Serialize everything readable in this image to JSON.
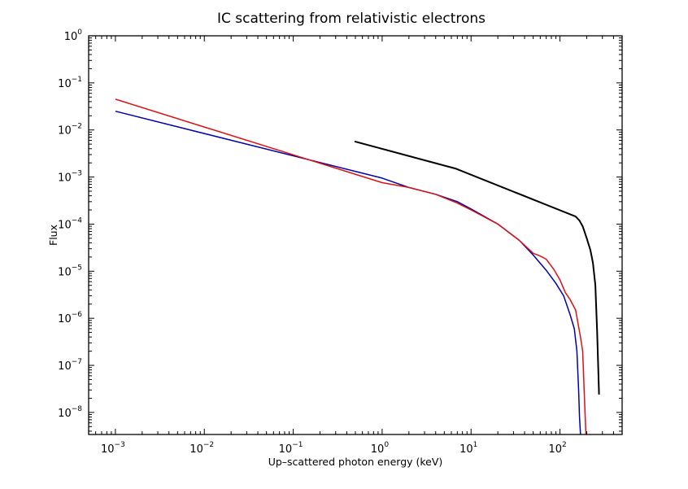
{
  "chart_data": {
    "type": "line",
    "title": "IC scattering from relativistic electrons",
    "xlabel": "Up–scattered photon energy (keV)",
    "ylabel": "Flux",
    "xscale": "log",
    "yscale": "log",
    "xlim": [
      0.0005,
      500
    ],
    "ylim": [
      3.4e-09,
      1
    ],
    "grid": false,
    "legend": "none",
    "x_ticks": [
      {
        "value": 0.001,
        "base": "10",
        "exp": "−3"
      },
      {
        "value": 0.01,
        "base": "10",
        "exp": "−2"
      },
      {
        "value": 0.1,
        "base": "10",
        "exp": "−1"
      },
      {
        "value": 1,
        "base": "10",
        "exp": "0"
      },
      {
        "value": 10,
        "base": "10",
        "exp": "1"
      },
      {
        "value": 100,
        "base": "10",
        "exp": "2"
      }
    ],
    "y_ticks": [
      {
        "value": 1,
        "base": "10",
        "exp": "0"
      },
      {
        "value": 0.1,
        "base": "10",
        "exp": "−1"
      },
      {
        "value": 0.01,
        "base": "10",
        "exp": "−2"
      },
      {
        "value": 0.001,
        "base": "10",
        "exp": "−3"
      },
      {
        "value": 0.0001,
        "base": "10",
        "exp": "−4"
      },
      {
        "value": 1e-05,
        "base": "10",
        "exp": "−5"
      },
      {
        "value": 1e-06,
        "base": "10",
        "exp": "−6"
      },
      {
        "value": 1e-07,
        "base": "10",
        "exp": "−7"
      },
      {
        "value": 1e-08,
        "base": "10",
        "exp": "−8"
      }
    ],
    "series": [
      {
        "name": "blue",
        "color": "#0000aa",
        "width": 1.5,
        "x": [
          0.001,
          1,
          2,
          4,
          7,
          10,
          20,
          35,
          50,
          70,
          90,
          110,
          130,
          145,
          155,
          162,
          166,
          170
        ],
        "y": [
          0.025,
          0.00095,
          0.0006,
          0.00043,
          0.0003,
          0.00021,
          0.0001,
          4.5e-05,
          2.2e-05,
          1.05e-05,
          5.5e-06,
          3e-06,
          1.2e-06,
          6e-07,
          2e-07,
          3e-08,
          8e-09,
          3.4e-09
        ]
      },
      {
        "name": "red",
        "color": "#dd1111",
        "width": 1.5,
        "x": [
          0.001,
          1,
          2,
          4,
          7,
          10,
          20,
          35,
          50,
          60,
          70,
          85,
          100,
          115,
          130,
          150,
          170,
          180,
          187,
          192,
          196
        ],
        "y": [
          0.045,
          0.00076,
          0.0006,
          0.00043,
          0.00028,
          0.0002,
          0.0001,
          4.5e-05,
          2.4e-05,
          2.1e-05,
          1.8e-05,
          1.1e-05,
          6.5e-06,
          3.5e-06,
          2.5e-06,
          1.5e-06,
          4e-07,
          2e-07,
          3e-08,
          8e-09,
          3.4e-09
        ]
      },
      {
        "name": "black",
        "color": "#000000",
        "width": 2,
        "x": [
          0.49,
          6.8,
          150,
          165,
          180,
          200,
          220,
          235,
          250,
          262,
          270,
          275
        ],
        "y": [
          0.0057,
          0.0015,
          0.000145,
          0.00012,
          9e-05,
          5e-05,
          2.8e-05,
          1.5e-05,
          5e-06,
          5e-07,
          8e-08,
          2.4e-08
        ]
      }
    ]
  }
}
